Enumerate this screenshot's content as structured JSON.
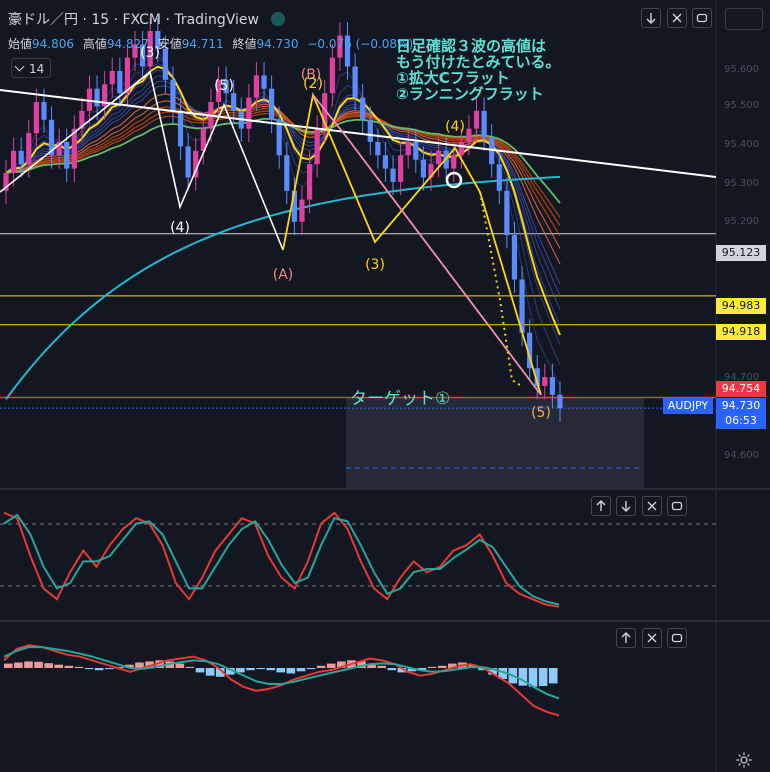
{
  "header": {
    "title": "豪ドル／円 · 15 · FXCM · TradingView"
  },
  "ohlc": {
    "open_label": "始値",
    "open": "94.806",
    "high_label": "高値",
    "high": "94.827",
    "low_label": "安値",
    "low": "94.711",
    "close_label": "終値",
    "close": "94.730",
    "change": "−0.076 (−0.08%)"
  },
  "interval": "14",
  "note": "日足確認３波の高値は\nもう付けたとみている。\n①拡大Cフラット\n②ランニングフラット",
  "target_label": "ターゲット①",
  "waves": [
    {
      "id": "w-3",
      "text": "(3)",
      "color": "white"
    },
    {
      "id": "w-5a",
      "text": "(5)",
      "color": "white"
    },
    {
      "id": "w-4a",
      "text": "(4)",
      "color": "white"
    },
    {
      "id": "w-b",
      "text": "(B)",
      "color": "pink"
    },
    {
      "id": "w-2",
      "text": "(2)",
      "color": "yellow"
    },
    {
      "id": "w-a",
      "text": "(A)",
      "color": "pink"
    },
    {
      "id": "w-3b",
      "text": "(3)",
      "color": "yellow"
    },
    {
      "id": "w-4b",
      "text": "(4)",
      "color": "yellow"
    },
    {
      "id": "w-5b",
      "text": "(5)",
      "color": "orange"
    }
  ],
  "price_labels": [
    {
      "value": "95.123",
      "bg": "#d1d4dc",
      "fg": "#131722"
    },
    {
      "value": "94.983",
      "bg": "#ffeb3b",
      "fg": "#131722"
    },
    {
      "value": "94.918",
      "bg": "#ffeb3b",
      "fg": "#131722"
    },
    {
      "value": "94.754",
      "bg": "#f23645",
      "fg": "#ffffff"
    }
  ],
  "last_price": {
    "symbol": "AUDJPY",
    "price": "94.730",
    "countdown": "06:53"
  },
  "axis_ticks": [
    "95.600",
    "95.500",
    "95.400",
    "95.300",
    "95.200",
    "94.700",
    "94.600"
  ],
  "chart_data": [
    {
      "type": "candlestick",
      "title": "豪ドル／円 · 15 · FXCM",
      "price_axis": {
        "range": [
          94.55,
          95.65
        ]
      },
      "horizontal_levels": [
        95.123,
        94.983,
        94.918,
        94.754
      ],
      "close_series": [
        95.26,
        95.31,
        95.28,
        95.35,
        95.42,
        95.38,
        95.3,
        95.33,
        95.27,
        95.36,
        95.4,
        95.45,
        95.41,
        95.46,
        95.49,
        95.44,
        95.52,
        95.55,
        95.5,
        95.58,
        95.54,
        95.47,
        95.4,
        95.32,
        95.25,
        95.31,
        95.36,
        95.42,
        95.47,
        95.44,
        95.4,
        95.36,
        95.43,
        95.48,
        95.45,
        95.38,
        95.3,
        95.22,
        95.15,
        95.2,
        95.28,
        95.36,
        95.44,
        95.52,
        95.57,
        95.5,
        95.43,
        95.38,
        95.33,
        95.3,
        95.27,
        95.24,
        95.3,
        95.33,
        95.29,
        95.25,
        95.28,
        95.31,
        95.27,
        95.3,
        95.33,
        95.36,
        95.4,
        95.34,
        95.28,
        95.22,
        95.12,
        95.02,
        94.9,
        94.82,
        94.78,
        94.8,
        94.76,
        94.73
      ]
    },
    {
      "type": "line",
      "title": "Stochastic",
      "series": [
        {
          "values": [
            0.9,
            0.85,
            0.5,
            0.2,
            0.1,
            0.35,
            0.55,
            0.4,
            0.6,
            0.75,
            0.85,
            0.8,
            0.6,
            0.25,
            0.1,
            0.3,
            0.55,
            0.7,
            0.85,
            0.8,
            0.5,
            0.3,
            0.2,
            0.45,
            0.8,
            0.9,
            0.75,
            0.45,
            0.2,
            0.1,
            0.3,
            0.45,
            0.35,
            0.4,
            0.55,
            0.6,
            0.7,
            0.5,
            0.25,
            0.15,
            0.1,
            0.05,
            0.03
          ]
        },
        {
          "values": [
            0.8,
            0.88,
            0.7,
            0.4,
            0.2,
            0.25,
            0.45,
            0.45,
            0.5,
            0.65,
            0.8,
            0.82,
            0.7,
            0.45,
            0.2,
            0.2,
            0.4,
            0.6,
            0.75,
            0.82,
            0.65,
            0.42,
            0.25,
            0.3,
            0.6,
            0.85,
            0.82,
            0.6,
            0.35,
            0.15,
            0.2,
            0.35,
            0.38,
            0.38,
            0.48,
            0.56,
            0.65,
            0.58,
            0.4,
            0.22,
            0.13,
            0.08,
            0.05
          ]
        }
      ]
    },
    {
      "type": "bar",
      "title": "MACD",
      "histogram": [
        0.2,
        0.25,
        0.3,
        0.28,
        0.22,
        0.15,
        0.1,
        0.05,
        -0.05,
        -0.1,
        -0.05,
        0.05,
        0.15,
        0.25,
        0.3,
        0.35,
        0.3,
        0.2,
        0.05,
        -0.2,
        -0.35,
        -0.4,
        -0.3,
        -0.2,
        -0.1,
        -0.05,
        -0.1,
        -0.2,
        -0.25,
        -0.15,
        -0.05,
        0.1,
        0.2,
        0.3,
        0.35,
        0.3,
        0.2,
        0.1,
        -0.1,
        -0.2,
        -0.15,
        -0.1,
        0.05,
        0.1,
        0.2,
        0.25,
        0.15,
        -0.1,
        -0.3,
        -0.5,
        -0.7,
        -0.8,
        -0.85,
        -0.82,
        -0.7
      ],
      "series": [
        {
          "values": [
            0.2,
            0.5,
            0.6,
            0.55,
            0.45,
            0.35,
            0.3,
            0.2,
            0.1,
            0.0,
            -0.1,
            0.0,
            0.1,
            0.2,
            0.25,
            0.3,
            0.2,
            0.0,
            -0.3,
            -0.5,
            -0.6,
            -0.55,
            -0.45,
            -0.3,
            -0.2,
            -0.1,
            -0.05,
            0.05,
            0.15,
            0.25,
            0.2,
            0.1,
            -0.1,
            -0.2,
            -0.15,
            -0.05,
            0.05,
            0.1,
            0.0,
            -0.2,
            -0.4,
            -0.7,
            -1.0,
            -1.15,
            -1.25
          ]
        },
        {
          "values": [
            0.3,
            0.45,
            0.55,
            0.55,
            0.5,
            0.45,
            0.38,
            0.3,
            0.2,
            0.1,
            0.0,
            -0.02,
            0.02,
            0.1,
            0.15,
            0.2,
            0.18,
            0.1,
            -0.05,
            -0.2,
            -0.35,
            -0.42,
            -0.42,
            -0.36,
            -0.28,
            -0.2,
            -0.12,
            -0.05,
            0.03,
            0.1,
            0.12,
            0.1,
            0.02,
            -0.06,
            -0.1,
            -0.08,
            -0.03,
            0.02,
            0.02,
            -0.05,
            -0.15,
            -0.3,
            -0.5,
            -0.68,
            -0.8
          ]
        }
      ]
    }
  ],
  "colors": {
    "background": "#131722",
    "bull": "#e040a0",
    "bear": "#5b8cff",
    "trendline": "#ffffff",
    "ma_yellow": "#ffd60a",
    "ma_green": "#66bb6a",
    "ma_cyan": "#22b8cf",
    "ribbon_orange": "#e65100",
    "ribbon_blue": "#3f51b5",
    "wave_yellow": "#ffd60a",
    "wave_pink": "#f48fb1",
    "target_box": "#2a2e39",
    "stoch_red": "#e53935",
    "stoch_teal": "#26a69a"
  },
  "icons": [
    "live-dot-icon",
    "chevron-down-icon",
    "arrow-down-icon",
    "close-icon",
    "maximize-icon",
    "arrow-up-icon",
    "gear-icon"
  ]
}
